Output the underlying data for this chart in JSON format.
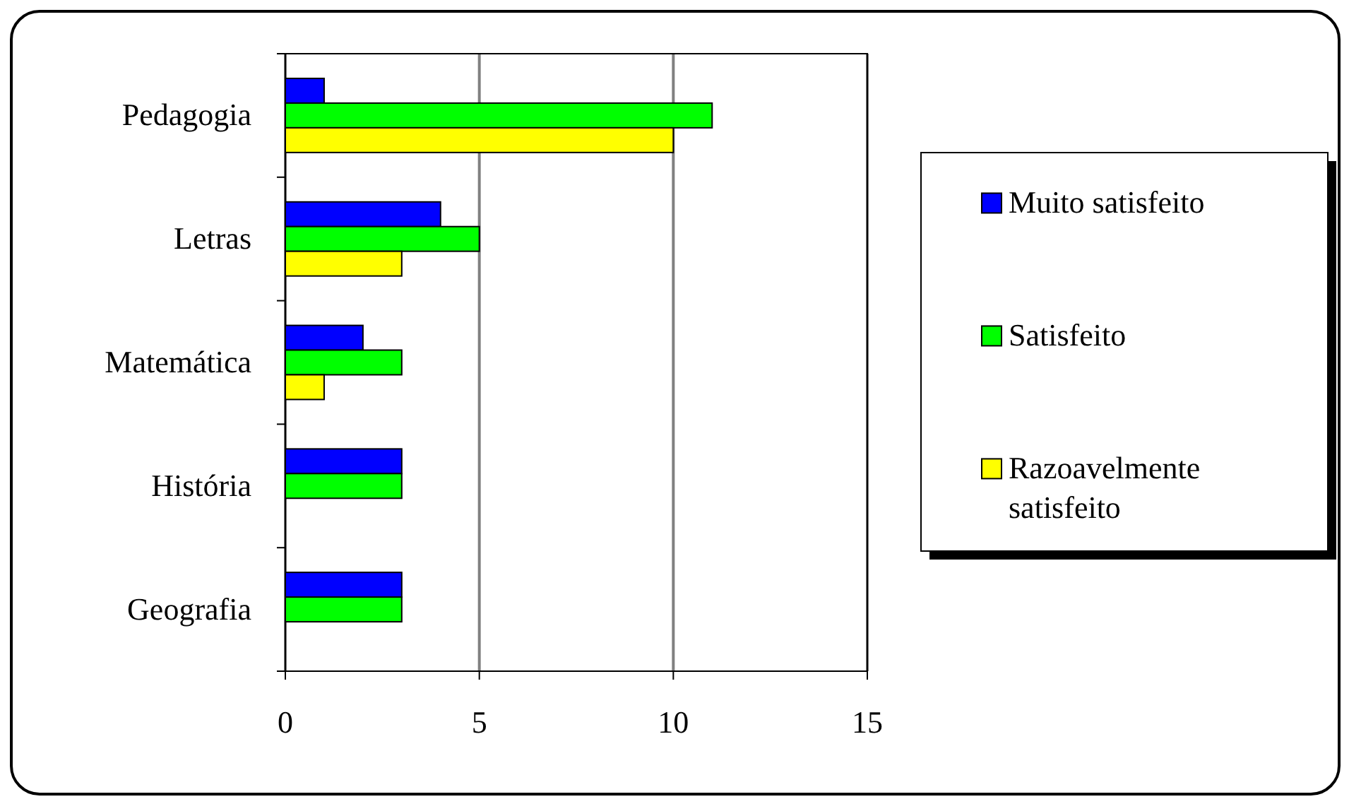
{
  "chart_data": {
    "type": "bar",
    "orientation": "horizontal",
    "categories": [
      "Pedagogia",
      "Letras",
      "Matemática",
      "História",
      "Geografia"
    ],
    "series": [
      {
        "name": "Muito satisfeito",
        "color": "#0000ff",
        "values": [
          1,
          4,
          2,
          3,
          3
        ]
      },
      {
        "name": "Satisfeito",
        "color": "#00ff00",
        "values": [
          11,
          5,
          3,
          3,
          3
        ]
      },
      {
        "name": "Razoavelmente satisfeito",
        "color": "#ffff00",
        "values": [
          10,
          3,
          1,
          0,
          0
        ]
      }
    ],
    "xlim": [
      0,
      15
    ],
    "xticks": [
      0,
      5,
      10,
      15
    ],
    "grid": "x",
    "legend": "right"
  }
}
